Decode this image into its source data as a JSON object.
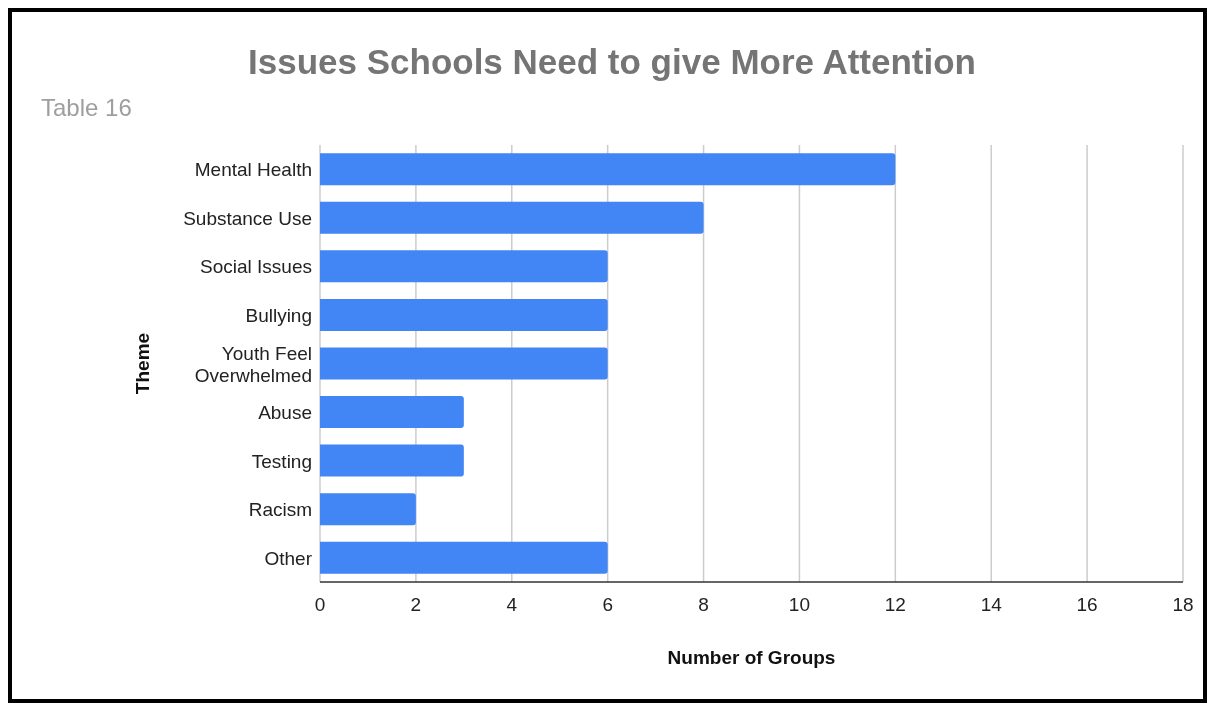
{
  "chart_data": {
    "type": "bar",
    "orientation": "horizontal",
    "title": "Issues Schools Need to give More Attention",
    "subtitle": "Table 16",
    "xlabel": "Number of Groups",
    "ylabel": "Theme",
    "categories": [
      "Mental Health",
      "Substance Use",
      "Social Issues",
      "Bullying",
      "Youth Feel Overwhelmed",
      "Abuse",
      "Testing",
      "Racism",
      "Other"
    ],
    "values": [
      12,
      8,
      6,
      6,
      6,
      3,
      3,
      2,
      6
    ],
    "color": "#4285f4",
    "xlim": [
      0,
      18
    ],
    "xticks": [
      0,
      2,
      4,
      6,
      8,
      10,
      12,
      14,
      16,
      18
    ],
    "grid": "x",
    "legend": false
  }
}
